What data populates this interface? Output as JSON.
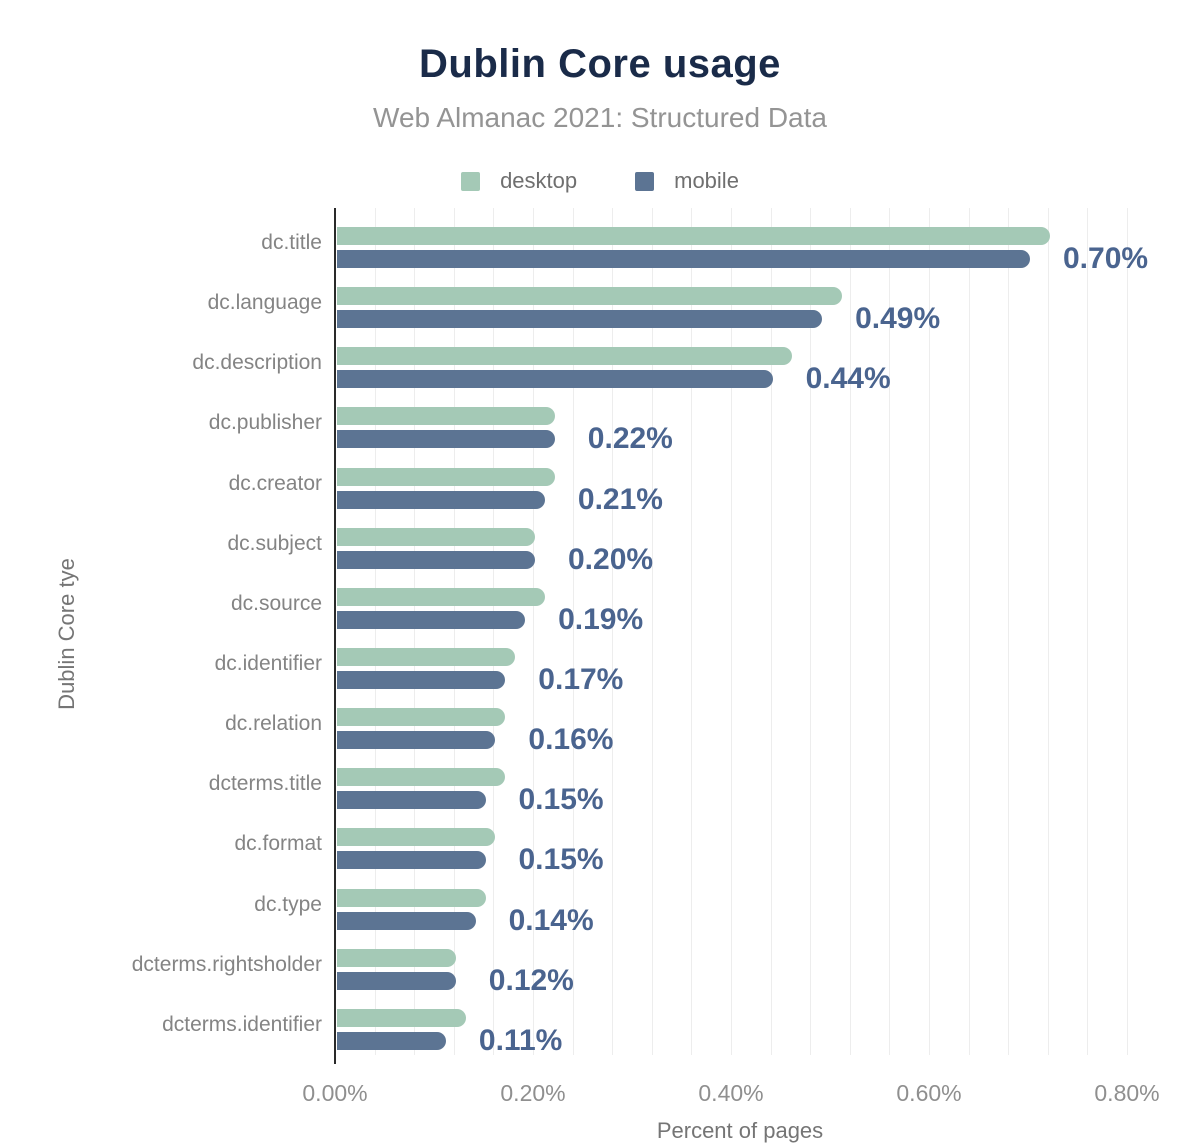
{
  "header": {
    "title": "Dublin Core usage",
    "subtitle": "Web Almanac 2021: Structured Data"
  },
  "colors": {
    "title": "#1a2b49",
    "subtitle": "#949494",
    "category_label": "#848484",
    "tick_label": "#8f8f8f",
    "axis_title": "#757575",
    "gridline": "#ededed",
    "axis_line": "#2a2a2a",
    "background": "#ffffff",
    "desktop_bar": "#a4c9b6",
    "mobile_bar": "#5c7493",
    "value_label": "#4a648f"
  },
  "chart_data": {
    "type": "bar",
    "orientation": "horizontal",
    "title": "Dublin Core usage",
    "subtitle": "Web Almanac 2021: Structured Data",
    "xlabel": "Percent of pages",
    "ylabel": "Dublin Core tye",
    "legend_position": "top",
    "grid": true,
    "xlim": [
      0,
      0.818
    ],
    "minor_grid_step_percent": 0.04,
    "xticks": [
      {
        "value": 0.0,
        "label": "0.00%"
      },
      {
        "value": 0.2,
        "label": "0.20%"
      },
      {
        "value": 0.4,
        "label": "0.40%"
      },
      {
        "value": 0.6,
        "label": "0.60%"
      },
      {
        "value": 0.8,
        "label": "0.80%"
      }
    ],
    "categories": [
      "dc.title",
      "dc.language",
      "dc.description",
      "dc.publisher",
      "dc.creator",
      "dc.subject",
      "dc.source",
      "dc.identifier",
      "dc.relation",
      "dcterms.title",
      "dc.format",
      "dc.type",
      "dcterms.rightsholder",
      "dcterms.identifier"
    ],
    "series": [
      {
        "name": "desktop",
        "color": "#a4c9b6",
        "values": [
          0.72,
          0.51,
          0.46,
          0.22,
          0.22,
          0.2,
          0.21,
          0.18,
          0.17,
          0.17,
          0.16,
          0.15,
          0.12,
          0.13
        ]
      },
      {
        "name": "mobile",
        "color": "#5c7493",
        "values": [
          0.7,
          0.49,
          0.44,
          0.22,
          0.21,
          0.2,
          0.19,
          0.17,
          0.16,
          0.15,
          0.15,
          0.14,
          0.12,
          0.11
        ]
      }
    ],
    "value_labels": [
      "0.70%",
      "0.49%",
      "0.44%",
      "0.22%",
      "0.21%",
      "0.20%",
      "0.19%",
      "0.17%",
      "0.16%",
      "0.15%",
      "0.15%",
      "0.14%",
      "0.12%",
      "0.11%"
    ],
    "value_label_color": "#4a648f"
  }
}
